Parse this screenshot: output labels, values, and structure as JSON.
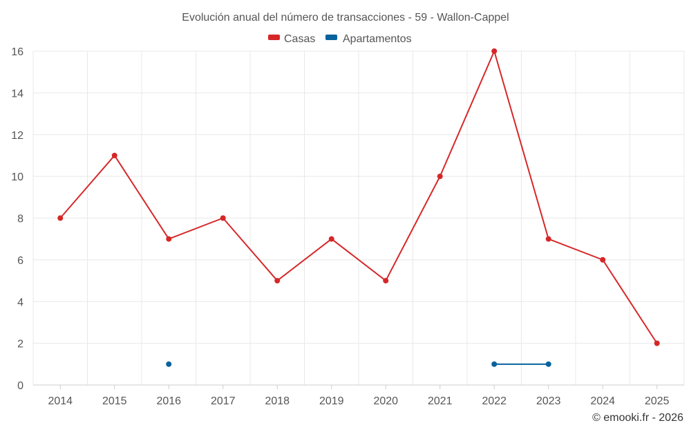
{
  "chart_data": {
    "type": "line",
    "title": "Evolución anual del número de transacciones - 59 - Wallon-Cappel",
    "categories": [
      "2014",
      "2015",
      "2016",
      "2017",
      "2018",
      "2019",
      "2020",
      "2021",
      "2022",
      "2023",
      "2024",
      "2025"
    ],
    "series": [
      {
        "name": "Casas",
        "color": "#d62728",
        "values": [
          8,
          11,
          7,
          8,
          5,
          7,
          5,
          10,
          16,
          7,
          6,
          2
        ]
      },
      {
        "name": "Apartamentos",
        "color": "#08639c",
        "values": [
          null,
          null,
          1,
          null,
          null,
          null,
          null,
          null,
          1,
          1,
          null,
          null
        ]
      }
    ],
    "ylim": [
      0,
      16
    ],
    "yticks": [
      0,
      2,
      4,
      6,
      8,
      10,
      12,
      14,
      16
    ],
    "grid": true,
    "legend_position": "top-center"
  },
  "credit": "© emooki.fr - 2026"
}
